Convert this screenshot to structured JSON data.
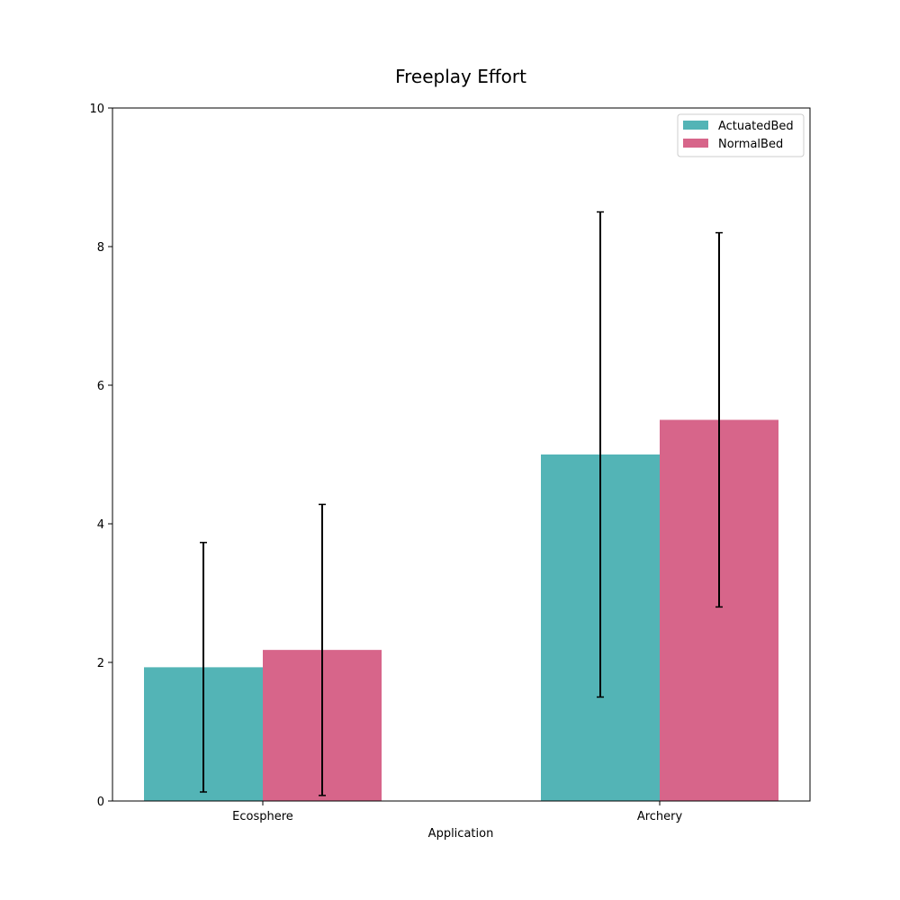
{
  "chart_data": {
    "type": "bar",
    "title": "Freeplay Effort",
    "xlabel": "Application",
    "ylabel": "",
    "categories": [
      "Ecosphere",
      "Archery"
    ],
    "series": [
      {
        "name": "ActuatedBed",
        "color": "#53b4b6",
        "values": [
          1.93,
          5.0
        ],
        "error_low": [
          0.13,
          1.5
        ],
        "error_high": [
          3.73,
          8.5
        ]
      },
      {
        "name": "NormalBed",
        "color": "#d7658a",
        "values": [
          2.18,
          5.5
        ],
        "error_low": [
          0.08,
          2.8
        ],
        "error_high": [
          4.28,
          8.2
        ]
      }
    ],
    "ylim": [
      0,
      10
    ],
    "yticks": [
      "0",
      "2",
      "4",
      "6",
      "8",
      "10"
    ],
    "grid": false,
    "legend_position": "top-right"
  }
}
